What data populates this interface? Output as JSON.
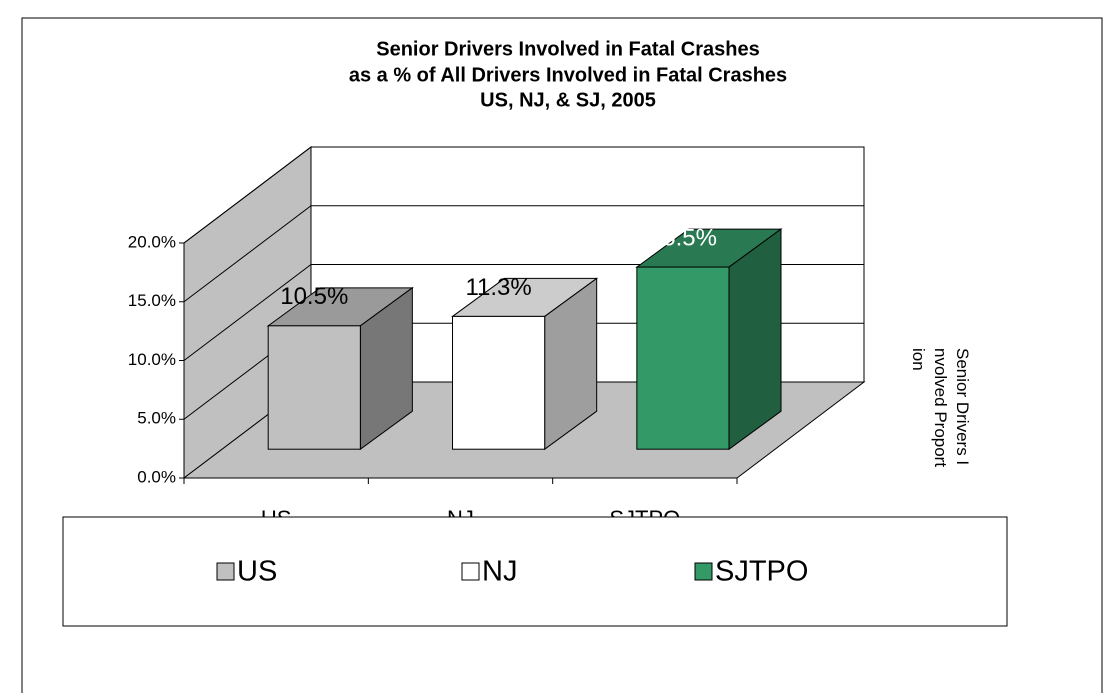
{
  "chart_data": {
    "type": "bar3d",
    "title": [
      "Senior Drivers Involved in Fatal Crashes",
      "as a % of All Drivers Involved in Fatal Crashes",
      "US, NJ, & SJ, 2005"
    ],
    "categories": [
      "US",
      "NJ",
      "SJTPO"
    ],
    "values": [
      10.5,
      11.3,
      15.5
    ],
    "value_labels": [
      "10.5%",
      "11.3%",
      "15.5%"
    ],
    "colors": [
      "#c0c0c0",
      "#ffffff",
      "#339966"
    ],
    "series_label": "Senior Drivers Involved Proportion",
    "ylim": [
      0,
      20
    ],
    "yticks": [
      {
        "value": 0,
        "label": "0.0%"
      },
      {
        "value": 5,
        "label": "5.0%"
      },
      {
        "value": 10,
        "label": "10.0%"
      },
      {
        "value": 15,
        "label": "15.0%"
      },
      {
        "value": 20,
        "label": "20.0%"
      }
    ],
    "grid": true,
    "legend": "bottom"
  }
}
